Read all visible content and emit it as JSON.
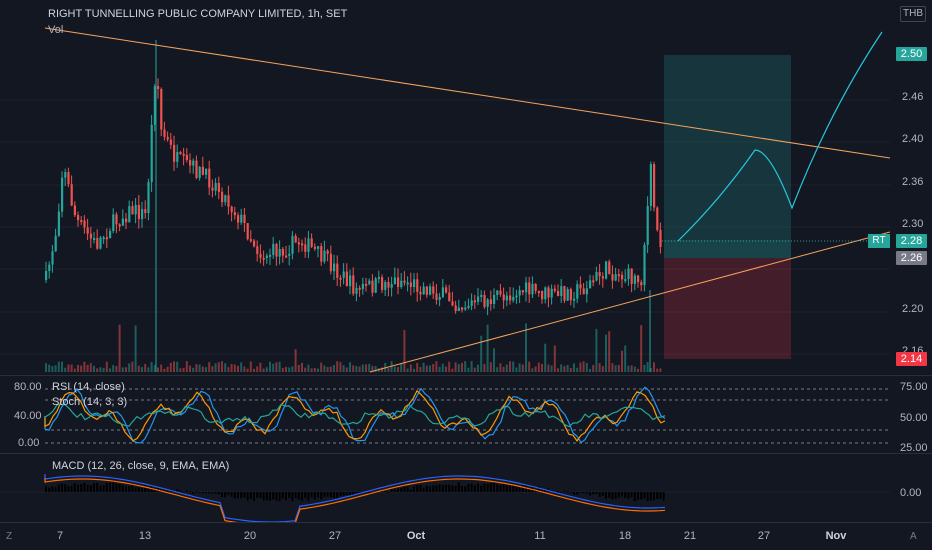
{
  "header": {
    "title": "RIGHT TUNNELLING PUBLIC COMPANY LIMITED, 1h, SET",
    "vol_label": "Vol",
    "currency": "THB"
  },
  "price_scale": {
    "ticks": [
      "2.46",
      "2.40",
      "2.36",
      "2.30",
      "2.20",
      "2.16"
    ]
  },
  "price_tags": {
    "target": {
      "value": "2.50",
      "color": "#26a69a"
    },
    "symbol": "RT",
    "last": {
      "value": "2.28",
      "color": "#26a69a"
    },
    "entry": {
      "value": "2.26",
      "color": "#787b86"
    },
    "stop": {
      "value": "2.14",
      "color": "#f23645"
    }
  },
  "rsi_panel": {
    "label": "RSI (14, close)",
    "stoch_label": "Stoch (14, 3, 3)",
    "left_ticks": [
      "80.00",
      "40.00",
      "0.00"
    ],
    "right_ticks": [
      "75.00",
      "50.00",
      "25.00"
    ]
  },
  "macd_panel": {
    "label": "MACD (12, 26, close, 9, EMA, EMA)",
    "right_tick": "0.00"
  },
  "time_axis": {
    "labels": [
      "7",
      "13",
      "20",
      "27",
      "Oct",
      "11",
      "18",
      "21",
      "27",
      "Nov"
    ],
    "bold": "Oct"
  },
  "corners": {
    "left": "Z",
    "right": "A"
  },
  "colors": {
    "up": "#26a69a",
    "down": "#ef5350",
    "trend": "#f7a35c",
    "projection": "#26c6da",
    "rsi": "#ff9800",
    "stoch": "#2196f3"
  }
}
